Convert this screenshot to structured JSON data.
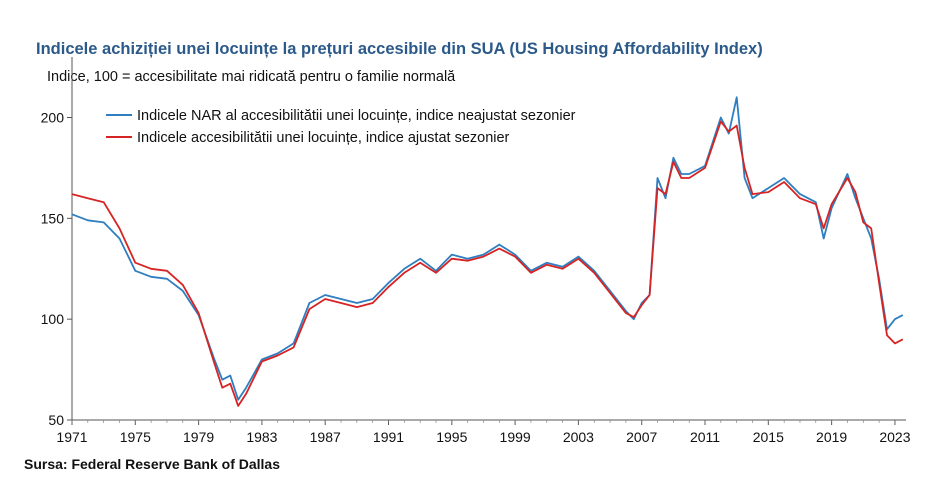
{
  "chart_data": {
    "type": "line",
    "title": "Indicele achiziției unei locuințe la prețuri accesibile din SUA (US Housing Affordability Index)",
    "subtitle": "Indice, 100 = accesibilitate mai ridicată pentru o familie normală",
    "source": "Sursa: Federal Reserve Bank of Dallas",
    "xlim": [
      1971,
      2023.7
    ],
    "ylim": [
      50,
      230
    ],
    "x_ticks": [
      "1971",
      "1975",
      "1979",
      "1983",
      "1987",
      "1991",
      "1995",
      "1999",
      "2003",
      "2007",
      "2011",
      "2015",
      "2019",
      "2023"
    ],
    "y_ticks": [
      "50",
      "100",
      "150",
      "200"
    ],
    "grid": false,
    "legend_position": "top-left",
    "series": [
      {
        "name": "Indicele NAR al accesibilitătii unei locuințe, indice neajustat sezonier",
        "color": "#2e7ec0",
        "x": [
          1971,
          1972,
          1973,
          1974,
          1975,
          1976,
          1977,
          1978,
          1979,
          1980,
          1980.5,
          1981,
          1981.5,
          1982,
          1983,
          1984,
          1985,
          1986,
          1987,
          1988,
          1989,
          1990,
          1991,
          1992,
          1993,
          1994,
          1995,
          1996,
          1997,
          1998,
          1999,
          2000,
          2001,
          2002,
          2003,
          2004,
          2005,
          2006,
          2006.5,
          2007,
          2007.5,
          2008,
          2008.5,
          2009,
          2009.5,
          2010,
          2011,
          2012,
          2012.5,
          2013,
          2013.5,
          2014,
          2015,
          2016,
          2017,
          2018,
          2018.5,
          2019,
          2020,
          2020.5,
          2021,
          2021.5,
          2022,
          2022.5,
          2023,
          2023.5
        ],
        "y": [
          152,
          149,
          148,
          140,
          124,
          121,
          120,
          114,
          102,
          80,
          70,
          72,
          60,
          66,
          80,
          83,
          88,
          108,
          112,
          110,
          108,
          110,
          118,
          125,
          130,
          124,
          132,
          130,
          132,
          137,
          132,
          124,
          128,
          126,
          131,
          124,
          114,
          104,
          100,
          108,
          112,
          170,
          160,
          180,
          172,
          172,
          176,
          200,
          192,
          210,
          170,
          160,
          165,
          170,
          162,
          158,
          140,
          155,
          172,
          160,
          150,
          140,
          120,
          95,
          100,
          102
        ]
      },
      {
        "name": "Indicele accesibilitătii unei locuințe, indice ajustat sezonier",
        "color": "#d62424",
        "x": [
          1971,
          1972,
          1973,
          1974,
          1975,
          1976,
          1977,
          1978,
          1979,
          1980,
          1980.5,
          1981,
          1981.5,
          1982,
          1983,
          1984,
          1985,
          1986,
          1987,
          1988,
          1989,
          1990,
          1991,
          1992,
          1993,
          1994,
          1995,
          1996,
          1997,
          1998,
          1999,
          2000,
          2001,
          2002,
          2003,
          2004,
          2005,
          2006,
          2006.5,
          2007,
          2007.5,
          2008,
          2008.5,
          2009,
          2009.5,
          2010,
          2011,
          2012,
          2012.5,
          2013,
          2013.5,
          2014,
          2015,
          2016,
          2017,
          2018,
          2018.5,
          2019,
          2020,
          2020.5,
          2021,
          2021.5,
          2022,
          2022.5,
          2023,
          2023.5
        ],
        "y": [
          162,
          160,
          158,
          145,
          128,
          125,
          124,
          117,
          103,
          78,
          66,
          68,
          57,
          63,
          79,
          82,
          86,
          105,
          110,
          108,
          106,
          108,
          116,
          123,
          128,
          123,
          130,
          129,
          131,
          135,
          131,
          123,
          127,
          125,
          130,
          123,
          113,
          103,
          101,
          107,
          112,
          165,
          162,
          178,
          170,
          170,
          175,
          198,
          193,
          196,
          175,
          162,
          163,
          168,
          160,
          157,
          145,
          157,
          170,
          163,
          148,
          145,
          118,
          92,
          88,
          90
        ]
      }
    ]
  }
}
